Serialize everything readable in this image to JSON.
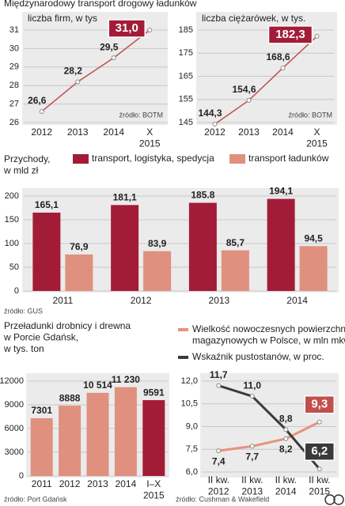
{
  "header": "Międzynarodowy transport drogowy ładunków",
  "chart_data": [
    {
      "type": "line",
      "title": "liczba firm, w tys",
      "source": "źródło: BOTM",
      "categories": [
        "2012",
        "2013",
        "2014",
        "X\n2015"
      ],
      "series": [
        {
          "name": null,
          "color": "#c0504d",
          "values": [
            26.6,
            28.2,
            29.5,
            31.0
          ],
          "value_labels": [
            "26,6",
            "28,2",
            "29,5",
            "31,0"
          ]
        }
      ],
      "highlight_color": "#a31c37",
      "ylim": [
        26,
        31
      ],
      "yticks": [
        26,
        27,
        28,
        29,
        30,
        31
      ],
      "grid": true
    },
    {
      "type": "line",
      "title": "liczba ciężarówek, w tys.",
      "source": "źródło: BOTM",
      "categories": [
        "2012",
        "2013",
        "2014",
        "X\n2015"
      ],
      "series": [
        {
          "name": null,
          "color": "#c0504d",
          "values": [
            144.3,
            154.6,
            168.6,
            182.3
          ],
          "value_labels": [
            "144,3",
            "154,6",
            "168,6",
            "182,3"
          ]
        }
      ],
      "highlight_color": "#a31c37",
      "ylim": [
        145,
        185
      ],
      "yticks": [
        145,
        155,
        165,
        175,
        185
      ],
      "grid": true
    },
    {
      "type": "bar",
      "title": "Przychody,\nw mld zł",
      "source": "źródło: GUS",
      "categories": [
        "2011",
        "2012",
        "2013",
        "2014"
      ],
      "series": [
        {
          "name": "transport, logistyka, spedycja",
          "color": "#a31c37",
          "values": [
            165.1,
            181.1,
            185.8,
            194.1
          ],
          "value_labels": [
            "165,1",
            "181,1",
            "185.8",
            "194,1"
          ]
        },
        {
          "name": "transport ładunków",
          "color": "#e0907e",
          "values": [
            76.9,
            83.9,
            85.7,
            94.5
          ],
          "value_labels": [
            "76,9",
            "83,9",
            "85,7",
            "94,5"
          ]
        }
      ],
      "ylim": [
        0,
        200
      ],
      "yticks": [
        0,
        50,
        100,
        150,
        200
      ],
      "grid": true
    },
    {
      "type": "bar",
      "title": "Przeładunki drobnicy i drewna\nw Porcie Gdańsk,\nw tys. ton",
      "source": "źródło: Port Gdańsk",
      "categories": [
        "2011",
        "2012",
        "2013",
        "2014",
        "I–X\n2015"
      ],
      "values": [
        7301,
        8888,
        10514,
        11230,
        9591
      ],
      "value_labels": [
        "7301",
        "8888",
        "10 514",
        "11 230",
        "9591"
      ],
      "colors": [
        "#e0907e",
        "#e0907e",
        "#e0907e",
        "#e0907e",
        "#a31c37"
      ],
      "ylim": [
        0,
        12000
      ],
      "yticks": [
        0,
        3000,
        6000,
        9000,
        12000
      ],
      "grid": true
    },
    {
      "type": "line",
      "source": "źródło: Cushman & Wakefield",
      "categories": [
        "II kw.\n2012",
        "II kw.\n2013",
        "II kw.\n2014",
        "II kw.\n2015"
      ],
      "series": [
        {
          "name": "Wielkość nowoczesnych powierzchni\nmagazynowych w Polsce, w mln mkw.",
          "color": "#e8927c",
          "values": [
            7.4,
            7.7,
            8.2,
            9.3
          ],
          "value_labels": [
            "7,4",
            "7,7",
            "8,2",
            "9,3"
          ],
          "highlight_color": "#c0504d"
        },
        {
          "name": "Wskaźnik pustostanów, w proc.",
          "color": "#3a3a3a",
          "values": [
            11.7,
            11.0,
            8.8,
            6.2
          ],
          "value_labels": [
            "11,7",
            "11,0",
            "8,8",
            "6,2"
          ],
          "highlight_color": "#3a3a3a"
        }
      ],
      "ylim": [
        6,
        12
      ],
      "yticks": [
        {
          "value": 6,
          "label": "6,0"
        },
        {
          "value": 7.5,
          "label": "7,5"
        },
        {
          "value": 9,
          "label": "9,0"
        },
        {
          "value": 10.5,
          "label": "10,5"
        },
        {
          "value": 12,
          "label": "12,0"
        }
      ],
      "grid": true
    }
  ]
}
